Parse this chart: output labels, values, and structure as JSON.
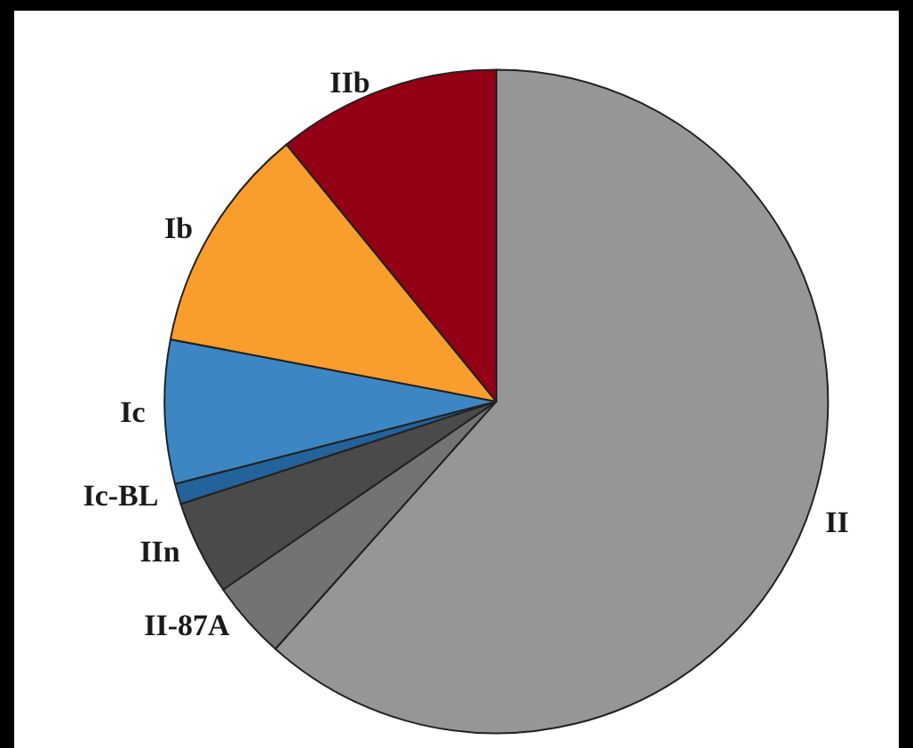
{
  "chart_data": {
    "type": "pie",
    "categories": [
      "II",
      "II-87A",
      "IIn",
      "Ic-BL",
      "Ic",
      "Ib",
      "IIb"
    ],
    "values": [
      61.6,
      3.8,
      4.6,
      1.0,
      7.0,
      11.1,
      10.9
    ],
    "colors": [
      "#969696",
      "#737373",
      "#4a4a4a",
      "#23629a",
      "#3c87c3",
      "#f99d2c",
      "#930015"
    ]
  }
}
